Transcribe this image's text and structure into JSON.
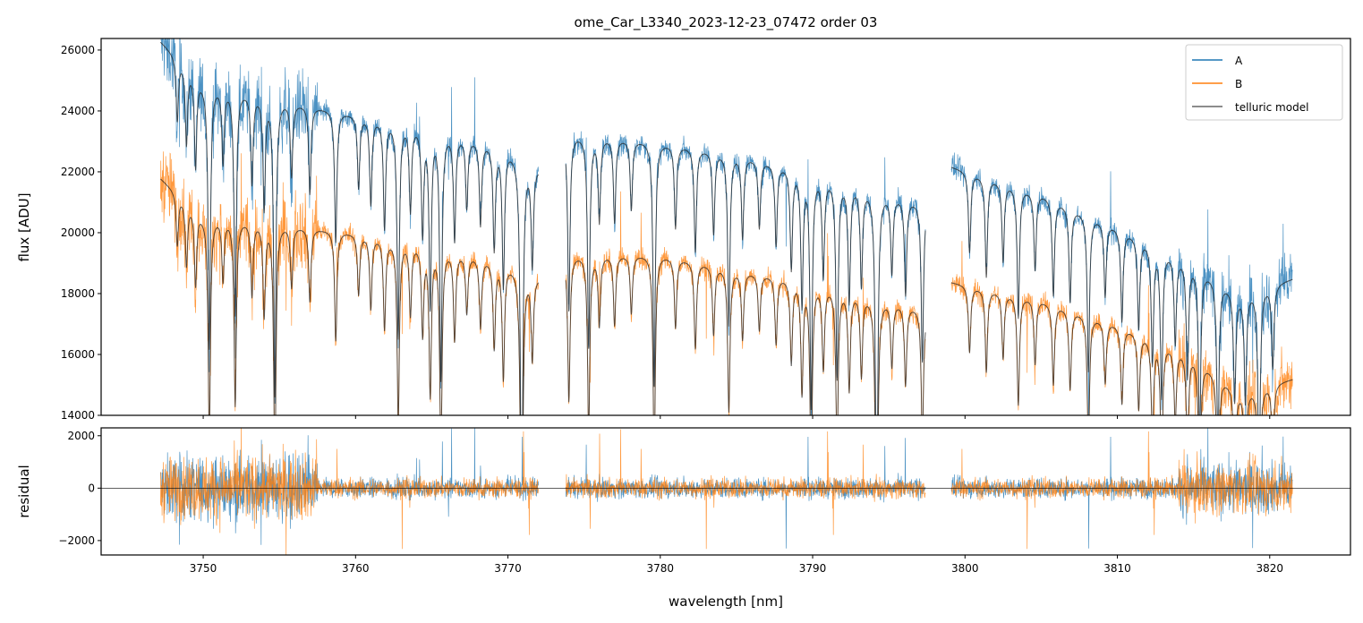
{
  "chart_data": {
    "type": "line",
    "title": "ome_Car_L3340_2023-12-23_07472  order 03",
    "xlabel": "wavelength [nm]",
    "xlim": [
      3743.3,
      3825.3
    ],
    "xticks": [
      3750,
      3760,
      3770,
      3780,
      3790,
      3800,
      3810,
      3820
    ],
    "legend": {
      "position": "top-right",
      "entries": [
        "A",
        "B",
        "telluric model"
      ]
    },
    "colors": {
      "A": "#1f77b4",
      "B": "#ff7f0e",
      "telluric model": "#333333"
    },
    "panels": [
      {
        "name": "flux",
        "ylabel": "flux [ADU]",
        "ylim": [
          14000,
          26380
        ],
        "yticks": [
          14000,
          16000,
          18000,
          20000,
          22000,
          24000,
          26000
        ],
        "segments": [
          [
            3747.2,
            3772.0
          ],
          [
            3773.8,
            3797.4
          ],
          [
            3799.1,
            3821.5
          ]
        ],
        "series": [
          {
            "name": "A",
            "continuum": [
              [
                3747.2,
                26300
              ],
              [
                3750,
                25000
              ],
              [
                3755,
                24400
              ],
              [
                3760,
                23900
              ],
              [
                3765,
                23500
              ],
              [
                3770,
                22800
              ],
              [
                3772,
                22200
              ],
              [
                3773.8,
                23300
              ],
              [
                3780,
                23000
              ],
              [
                3785,
                22600
              ],
              [
                3790,
                22000
              ],
              [
                3795,
                21300
              ],
              [
                3797.4,
                21000
              ],
              [
                3799.1,
                22200
              ],
              [
                3805,
                21300
              ],
              [
                3810,
                20200
              ],
              [
                3815,
                19000
              ],
              [
                3818,
                18000
              ],
              [
                3821.5,
                18500
              ]
            ]
          },
          {
            "name": "B",
            "continuum": [
              [
                3747.2,
                21800
              ],
              [
                3750,
                20600
              ],
              [
                3755,
                20300
              ],
              [
                3760,
                20000
              ],
              [
                3765,
                19600
              ],
              [
                3770,
                19000
              ],
              [
                3772,
                18600
              ],
              [
                3773.8,
                19300
              ],
              [
                3780,
                19300
              ],
              [
                3785,
                18800
              ],
              [
                3790,
                18400
              ],
              [
                3795,
                17800
              ],
              [
                3797.4,
                17500
              ],
              [
                3799.1,
                18400
              ],
              [
                3805,
                17800
              ],
              [
                3810,
                17000
              ],
              [
                3815,
                16000
              ],
              [
                3818,
                14800
              ],
              [
                3821.5,
                15200
              ]
            ]
          }
        ],
        "absorption_lines": [
          [
            3748.3,
            0.08
          ],
          [
            3748.9,
            0.1
          ],
          [
            3749.5,
            0.12
          ],
          [
            3750.4,
            0.35
          ],
          [
            3751.3,
            0.1
          ],
          [
            3752.1,
            0.3
          ],
          [
            3753.2,
            0.12
          ],
          [
            3754.0,
            0.15
          ],
          [
            3754.7,
            0.4
          ],
          [
            3755.8,
            0.1
          ],
          [
            3757.0,
            0.12
          ],
          [
            3758.7,
            0.18
          ],
          [
            3760.2,
            0.1
          ],
          [
            3761.0,
            0.12
          ],
          [
            3761.9,
            0.15
          ],
          [
            3762.8,
            0.3
          ],
          [
            3763.6,
            0.12
          ],
          [
            3764.4,
            0.15
          ],
          [
            3764.9,
            0.25
          ],
          [
            3765.6,
            0.35
          ],
          [
            3766.5,
            0.15
          ],
          [
            3767.3,
            0.1
          ],
          [
            3768.2,
            0.12
          ],
          [
            3769.1,
            0.15
          ],
          [
            3769.7,
            0.2
          ],
          [
            3770.9,
            0.6
          ],
          [
            3771.6,
            0.15
          ],
          [
            3774.0,
            0.25
          ],
          [
            3775.3,
            0.3
          ],
          [
            3776.0,
            0.12
          ],
          [
            3777.0,
            0.12
          ],
          [
            3778.1,
            0.1
          ],
          [
            3779.6,
            0.35
          ],
          [
            3781.0,
            0.12
          ],
          [
            3782.3,
            0.15
          ],
          [
            3783.5,
            0.12
          ],
          [
            3784.5,
            0.25
          ],
          [
            3785.4,
            0.12
          ],
          [
            3786.5,
            0.1
          ],
          [
            3787.6,
            0.12
          ],
          [
            3788.6,
            0.15
          ],
          [
            3789.3,
            0.2
          ],
          [
            3789.9,
            0.35
          ],
          [
            3790.7,
            0.15
          ],
          [
            3791.6,
            0.3
          ],
          [
            3792.4,
            0.18
          ],
          [
            3793.2,
            0.15
          ],
          [
            3794.2,
            0.55
          ],
          [
            3795.2,
            0.12
          ],
          [
            3796.1,
            0.15
          ],
          [
            3797.2,
            0.25
          ],
          [
            3800.3,
            0.12
          ],
          [
            3801.4,
            0.15
          ],
          [
            3802.5,
            0.12
          ],
          [
            3803.5,
            0.2
          ],
          [
            3804.6,
            0.12
          ],
          [
            3805.8,
            0.15
          ],
          [
            3806.9,
            0.15
          ],
          [
            3808.1,
            0.25
          ],
          [
            3809.2,
            0.12
          ],
          [
            3810.3,
            0.15
          ],
          [
            3811.4,
            0.15
          ],
          [
            3812.3,
            0.2
          ],
          [
            3812.9,
            0.25
          ],
          [
            3813.8,
            0.15
          ],
          [
            3814.6,
            0.2
          ],
          [
            3815.4,
            0.3
          ],
          [
            3816.6,
            0.3
          ],
          [
            3817.7,
            0.2
          ],
          [
            3818.4,
            0.2
          ],
          [
            3819.3,
            0.35
          ],
          [
            3820.2,
            0.15
          ]
        ]
      },
      {
        "name": "residual",
        "ylabel": "residual",
        "ylim": [
          -2550,
          2300
        ],
        "yticks": [
          -2000,
          0,
          2000
        ],
        "reference_line": 0
      }
    ]
  }
}
